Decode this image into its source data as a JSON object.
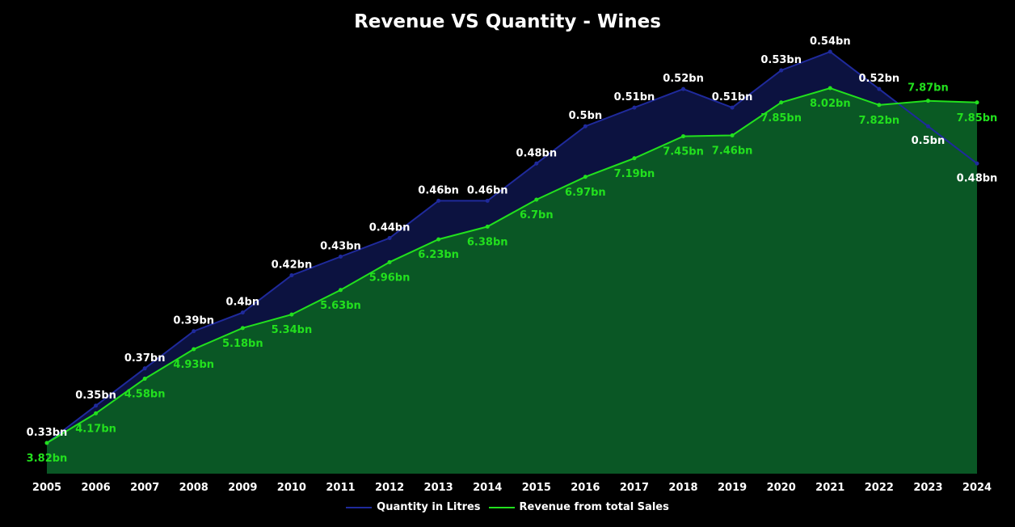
{
  "colors": {
    "background": "#000000",
    "quantity_line": "#1f2a9c",
    "quantity_fill": "#0c1240",
    "revenue_line": "#22e01e",
    "revenue_fill": "#0a5a24",
    "revenue_fill_above": "#0b6a12",
    "quantity_label": "#ffffff",
    "revenue_label": "#22e01e"
  },
  "chart_data": {
    "type": "area",
    "title": "Revenue VS Quantity - Wines",
    "xlabel": "",
    "ylabel": "",
    "x": [
      "2005",
      "2006",
      "2007",
      "2008",
      "2009",
      "2010",
      "2011",
      "2012",
      "2013",
      "2014",
      "2015",
      "2016",
      "2017",
      "2018",
      "2019",
      "2020",
      "2021",
      "2022",
      "2023",
      "2024"
    ],
    "series": [
      {
        "name": "Quantity in Litres",
        "values": [
          0.33,
          0.35,
          0.37,
          0.39,
          0.4,
          0.42,
          0.43,
          0.44,
          0.46,
          0.46,
          0.48,
          0.5,
          0.51,
          0.52,
          0.51,
          0.53,
          0.54,
          0.52,
          0.5,
          0.48
        ],
        "labels": [
          "0.33bn",
          "0.35bn",
          "0.37bn",
          "0.39bn",
          "0.4bn",
          "0.42bn",
          "0.43bn",
          "0.44bn",
          "0.46bn",
          "0.46bn",
          "0.48bn",
          "0.5bn",
          "0.51bn",
          "0.52bn",
          "0.51bn",
          "0.53bn",
          "0.54bn",
          "0.52bn",
          "0.5bn",
          "0.48bn"
        ]
      },
      {
        "name": "Revenue from total Sales",
        "values": [
          3.82,
          4.17,
          4.58,
          4.93,
          5.18,
          5.34,
          5.63,
          5.96,
          6.23,
          6.38,
          6.7,
          6.97,
          7.19,
          7.45,
          7.46,
          7.85,
          8.02,
          7.82,
          7.87,
          7.85
        ],
        "labels": [
          "3.82bn",
          "4.17bn",
          "4.58bn",
          "4.93bn",
          "5.18bn",
          "5.34bn",
          "5.63bn",
          "5.96bn",
          "6.23bn",
          "6.38bn",
          "6.7bn",
          "6.97bn",
          "7.19bn",
          "7.45bn",
          "7.46bn",
          "7.85bn",
          "8.02bn",
          "7.82bn",
          "7.87bn",
          "7.85bn"
        ]
      }
    ],
    "legend": "bottom-center",
    "grid": false
  }
}
